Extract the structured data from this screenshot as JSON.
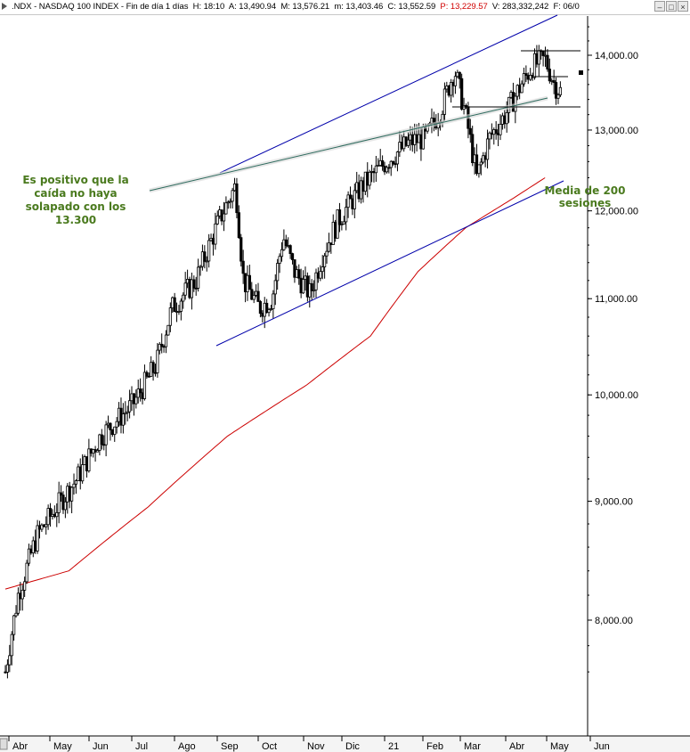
{
  "header": {
    "symbol": ".NDX - NASDAQ 100 INDEX - Fin de día 1 días",
    "h": "H: 18:10",
    "a": "A: 13,490.94",
    "m": "M: 13,576.21",
    "mm": "m: 13,403.46",
    "c": "C: 13,552.59",
    "p": "P: 13,229.57",
    "v": "V: 283,332,242",
    "f": "F: 06/0"
  },
  "annotations": {
    "left": [
      "Es positivo que la",
      "caída no haya",
      "solapado con los",
      "13.300"
    ],
    "right": [
      "Media de 200",
      "sesiones"
    ]
  },
  "colors": {
    "candle": "#000000",
    "ma": "#cc0000",
    "channel": "#0000aa",
    "trendline": "#2e6b5e",
    "annotation": "#4a7a1e"
  },
  "chart_data": {
    "type": "candlestick",
    "title": ".NDX - NASDAQ 100 INDEX",
    "y_ticks": [
      {
        "value": 8000,
        "label": "8,000.00"
      },
      {
        "value": 9000,
        "label": "9,000.00"
      },
      {
        "value": 10000,
        "label": "10,000.00"
      },
      {
        "value": 11000,
        "label": "11,000.00"
      },
      {
        "value": 12000,
        "label": "12,000.00"
      },
      {
        "value": 13000,
        "label": "13,000.00"
      },
      {
        "value": 14000,
        "label": "14,000.00"
      }
    ],
    "y_scale": "log",
    "x_months": [
      "Abr",
      "May",
      "Jun",
      "Jul",
      "Ago",
      "Sep",
      "Oct",
      "Nov",
      "Dic",
      "21",
      "Feb",
      "Mar",
      "Abr",
      "May",
      "Jun"
    ],
    "price_path": [
      [
        0,
        7600
      ],
      [
        8,
        8200
      ],
      [
        20,
        8700
      ],
      [
        30,
        8900
      ],
      [
        45,
        9200
      ],
      [
        60,
        9600
      ],
      [
        80,
        9900
      ],
      [
        95,
        10300
      ],
      [
        105,
        10900
      ],
      [
        120,
        11200
      ],
      [
        135,
        11900
      ],
      [
        145,
        12300
      ],
      [
        150,
        11200
      ],
      [
        160,
        10900
      ],
      [
        168,
        11000
      ],
      [
        175,
        11700
      ],
      [
        182,
        11300
      ],
      [
        192,
        11050
      ],
      [
        200,
        11500
      ],
      [
        210,
        11900
      ],
      [
        225,
        12300
      ],
      [
        240,
        12600
      ],
      [
        255,
        12850
      ],
      [
        265,
        12900
      ],
      [
        275,
        13300
      ],
      [
        283,
        13800
      ],
      [
        290,
        13200
      ],
      [
        297,
        12400
      ],
      [
        305,
        12900
      ],
      [
        315,
        13200
      ],
      [
        325,
        13600
      ],
      [
        332,
        13850
      ],
      [
        340,
        13950
      ],
      [
        346,
        13600
      ],
      [
        350,
        13500
      ]
    ],
    "ma200_path": [
      [
        0,
        8250
      ],
      [
        40,
        8400
      ],
      [
        90,
        8950
      ],
      [
        140,
        9600
      ],
      [
        190,
        10100
      ],
      [
        230,
        10600
      ],
      [
        260,
        11300
      ],
      [
        290,
        11800
      ],
      [
        320,
        12150
      ],
      [
        340,
        12400
      ]
    ],
    "levels": [
      13300,
      13750,
      14050
    ]
  }
}
